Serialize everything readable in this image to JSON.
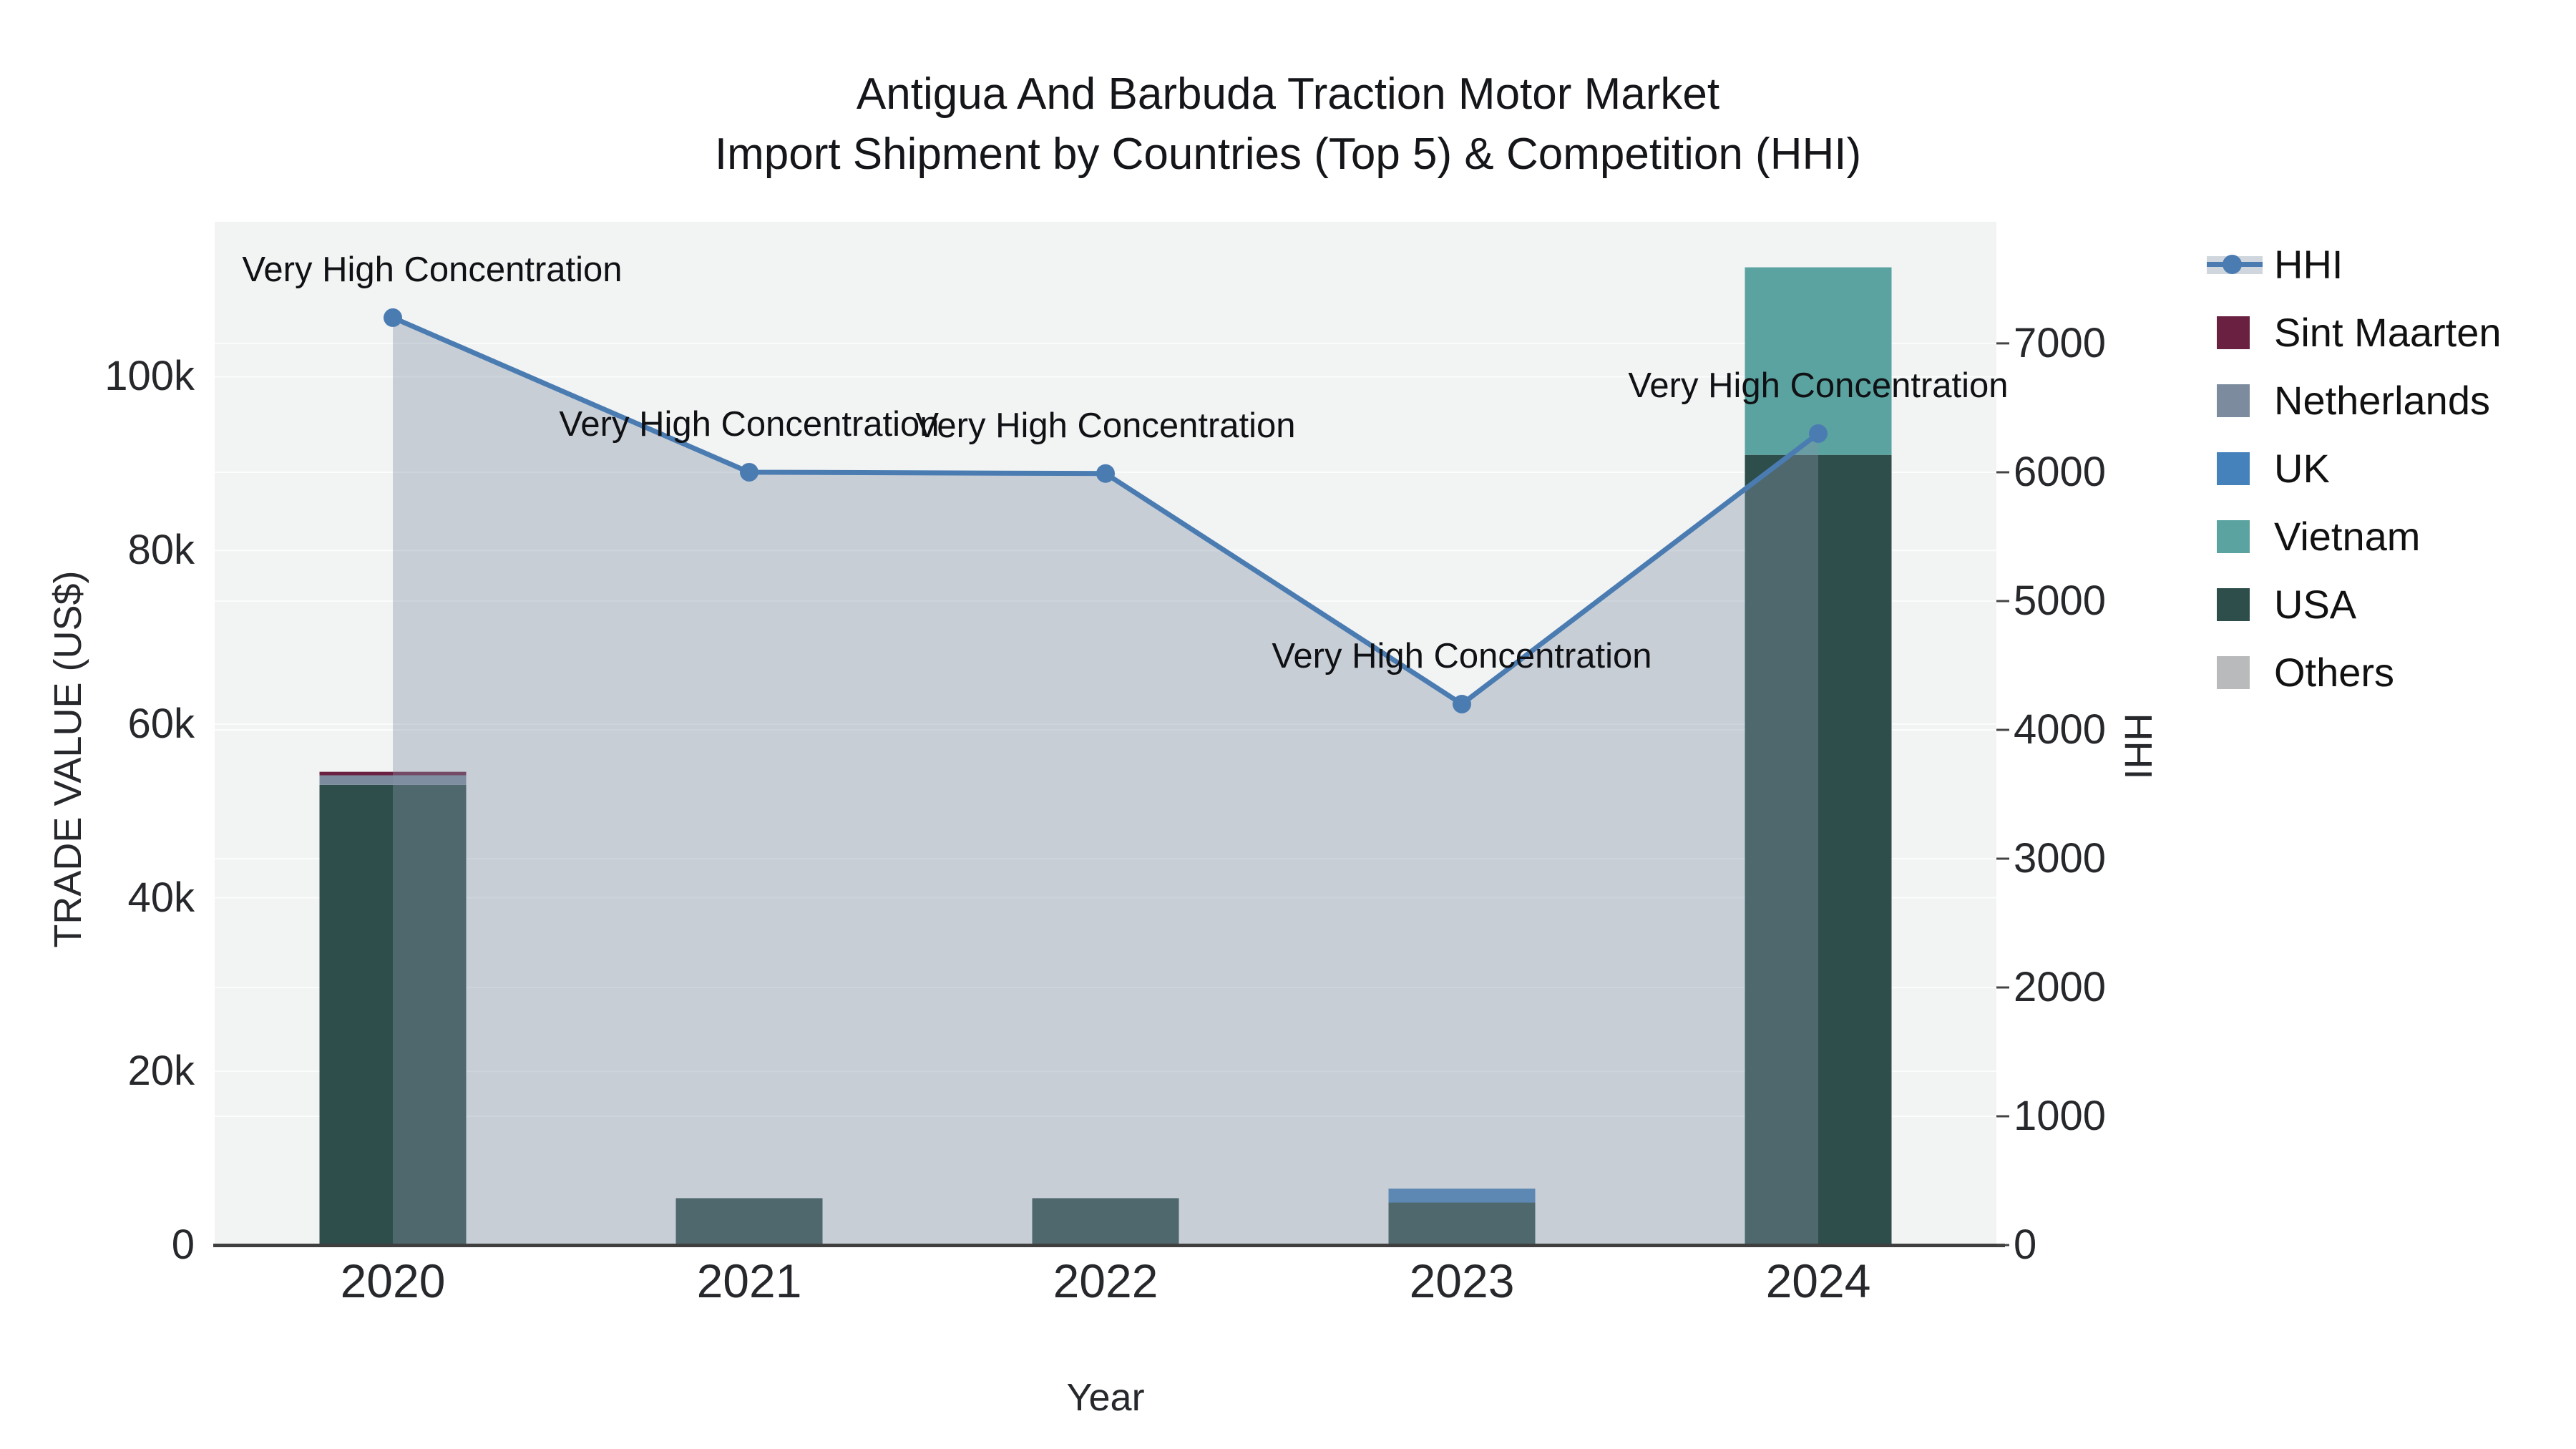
{
  "title": {
    "line1": "Antigua And Barbuda Traction Motor Market",
    "line2": "Import Shipment by Countries (Top 5) & Competition (HHI)"
  },
  "axes": {
    "x": {
      "title": "Year"
    },
    "left": {
      "title": "TRADE VALUE (US$)",
      "tick_values": [
        0,
        20000,
        40000,
        60000,
        80000,
        100000
      ],
      "tick_labels": [
        "0",
        "20k",
        "40k",
        "60k",
        "80k",
        "100k"
      ],
      "max": 117840
    },
    "right": {
      "title": "HHI",
      "tick_values": [
        0,
        1000,
        2000,
        3000,
        4000,
        5000,
        6000,
        7000
      ],
      "tick_labels": [
        "0",
        "1000",
        "2000",
        "3000",
        "4000",
        "5000",
        "6000",
        "7000"
      ],
      "max": 7944
    }
  },
  "chart_data": {
    "type": "bar+line",
    "categories": [
      "2020",
      "2021",
      "2022",
      "2023",
      "2024"
    ],
    "bar_stack_order_bottom_to_top": [
      "USA",
      "Vietnam",
      "UK",
      "Netherlands",
      "Sint Maarten",
      "Others"
    ],
    "series": [
      {
        "name": "USA",
        "color": "#2e4e4b",
        "values": [
          53000,
          5400,
          5400,
          4900,
          91000
        ]
      },
      {
        "name": "Vietnam",
        "color": "#5ba3a0",
        "values": [
          0,
          0,
          0,
          0,
          21600
        ]
      },
      {
        "name": "UK",
        "color": "#4581ba",
        "values": [
          0,
          0,
          0,
          1600,
          0
        ]
      },
      {
        "name": "Netherlands",
        "color": "#7c8b9d",
        "values": [
          1100,
          0,
          0,
          0,
          0
        ]
      },
      {
        "name": "Sint Maarten",
        "color": "#6a2040",
        "values": [
          400,
          0,
          0,
          0,
          0
        ]
      },
      {
        "name": "Others",
        "color": "#b9babb",
        "values": [
          0,
          0,
          0,
          0,
          0
        ]
      }
    ],
    "hhi_line": {
      "name": "HHI",
      "color": "#4a7cb2",
      "area_fill": "rgba(132,146,168,0.38)",
      "values": [
        7200,
        6000,
        5990,
        4200,
        6300
      ]
    },
    "annotations": [
      {
        "x": "2020",
        "text": "Very High Concentration"
      },
      {
        "x": "2021",
        "text": "Very High Concentration"
      },
      {
        "x": "2022",
        "text": "Very High Concentration"
      },
      {
        "x": "2023",
        "text": "Very High Concentration"
      },
      {
        "x": "2024",
        "text": "Very High Concentration"
      }
    ],
    "title": "Antigua And Barbuda Traction Motor Market Import Shipment by Countries (Top 5) & Competition (HHI)",
    "xlabel": "Year",
    "ylabel_left": "TRADE VALUE (US$)",
    "ylabel_right": "HHI",
    "ylim_left": [
      0,
      117840
    ],
    "ylim_right": [
      0,
      7944
    ],
    "grid": true,
    "legend_position": "right"
  },
  "legend": {
    "items": [
      {
        "label": "HHI",
        "color": "#4a7cb2",
        "kind": "line"
      },
      {
        "label": "Sint Maarten",
        "color": "#6a2040",
        "kind": "swatch"
      },
      {
        "label": "Netherlands",
        "color": "#7c8b9d",
        "kind": "swatch"
      },
      {
        "label": "UK",
        "color": "#4581ba",
        "kind": "swatch"
      },
      {
        "label": "Vietnam",
        "color": "#5ba3a0",
        "kind": "swatch"
      },
      {
        "label": "USA",
        "color": "#2e4e4b",
        "kind": "swatch"
      },
      {
        "label": "Others",
        "color": "#b9babb",
        "kind": "swatch"
      }
    ]
  },
  "style": {
    "plot_bg": "#f2f3f3",
    "grid_color": "#fbfcfc",
    "axis_line_color": "#3f3f3f",
    "tick_color": "#444444"
  }
}
